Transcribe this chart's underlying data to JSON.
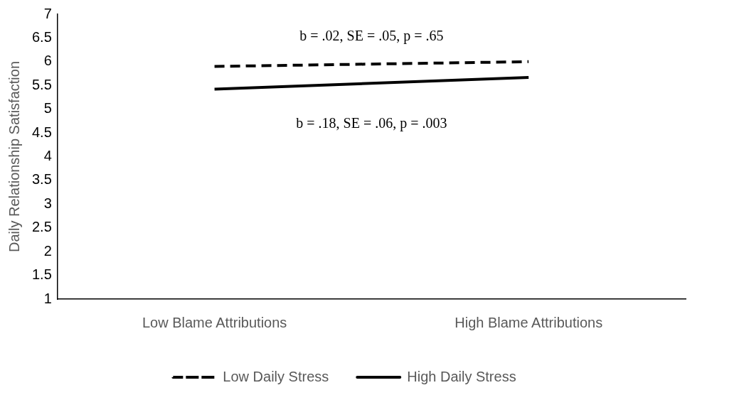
{
  "chart_data": {
    "type": "line",
    "ylabel": "Daily Relationship Satisfaction",
    "categories": [
      "Low Blame Attributions",
      "High Blame Attributions"
    ],
    "series": [
      {
        "name": "Low Daily Stress",
        "color": "#000000",
        "values": [
          5.9,
          6.0
        ],
        "line_style": "dashed"
      },
      {
        "name": "High Daily Stress",
        "color": "#000000",
        "values": [
          5.42,
          5.67
        ],
        "line_style": "solid"
      }
    ],
    "ylim": [
      1,
      7
    ],
    "yticks": [
      1,
      1.5,
      2,
      2.5,
      3,
      3.5,
      4,
      4.5,
      5,
      5.5,
      6,
      6.5,
      7
    ],
    "grid": false,
    "legend": "bottom",
    "marker": "none",
    "annotations": [
      "b = .02, SE = .05, p = .65",
      "b = .18, SE = .06, p = .003"
    ]
  }
}
